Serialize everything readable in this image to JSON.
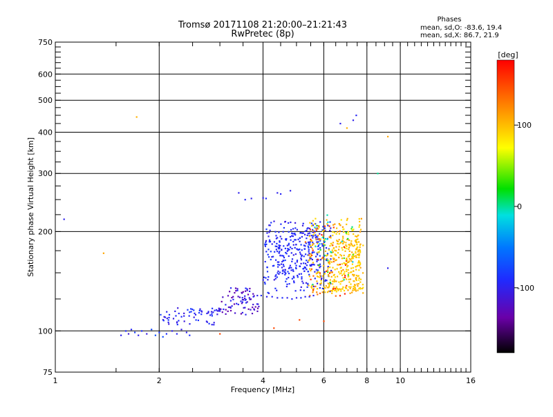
{
  "header": {
    "title": "Tromsø 20171108 21:20:00–21:21:43",
    "subtitle": "RwPretec (8p)"
  },
  "phases": {
    "heading": "Phases",
    "line_o": "mean, sd,O:  -83.6, 19.4",
    "line_x": "mean, sd,X:  86.7, 21.9"
  },
  "colorbar": {
    "label": "[deg]",
    "range": [
      -180,
      180
    ],
    "ticks": [
      {
        "value": 100,
        "label": "100"
      },
      {
        "value": 0,
        "label": "0"
      },
      {
        "value": -100,
        "label": "-100"
      }
    ]
  },
  "chart_data": {
    "type": "scatter",
    "xlabel": "Frequency [MHz]",
    "ylabel": "Stationary phase Virtual Height [km]",
    "x_scale": "log",
    "y_scale": "log",
    "xlim": [
      1,
      16
    ],
    "ylim": [
      75,
      750
    ],
    "grid": true,
    "x_ticks": [
      {
        "value": 1,
        "label": "1"
      },
      {
        "value": 2,
        "label": "2"
      },
      {
        "value": 4,
        "label": "4"
      },
      {
        "value": 6,
        "label": "6"
      },
      {
        "value": 8,
        "label": "8"
      },
      {
        "value": 10,
        "label": "10"
      },
      {
        "value": 16,
        "label": "16"
      }
    ],
    "x_grid": [
      2,
      4,
      6,
      8,
      10
    ],
    "y_ticks": [
      {
        "value": 75,
        "label": "75"
      },
      {
        "value": 100,
        "label": "100"
      },
      {
        "value": 200,
        "label": "200"
      },
      {
        "value": 300,
        "label": "300"
      },
      {
        "value": 400,
        "label": "400"
      },
      {
        "value": 500,
        "label": "500"
      },
      {
        "value": 600,
        "label": "600"
      },
      {
        "value": 750,
        "label": "750"
      }
    ],
    "y_grid": [
      100,
      200,
      300,
      400,
      500,
      600
    ],
    "points": [
      {
        "x": 1.06,
        "y": 218,
        "p": -100
      },
      {
        "x": 1.38,
        "y": 172,
        "p": 110
      },
      {
        "x": 1.72,
        "y": 445,
        "p": 105
      },
      {
        "x": 1.55,
        "y": 97,
        "p": -100
      },
      {
        "x": 1.6,
        "y": 100,
        "p": -90
      },
      {
        "x": 1.63,
        "y": 98,
        "p": -110
      },
      {
        "x": 1.66,
        "y": 101,
        "p": -95
      },
      {
        "x": 1.7,
        "y": 99,
        "p": -80
      },
      {
        "x": 1.74,
        "y": 97,
        "p": -100
      },
      {
        "x": 1.78,
        "y": 100,
        "p": -90
      },
      {
        "x": 1.84,
        "y": 98,
        "p": -105
      },
      {
        "x": 1.9,
        "y": 101,
        "p": -75
      },
      {
        "x": 1.95,
        "y": 97,
        "p": -70
      },
      {
        "x": 2.0,
        "y": 99,
        "p": -85
      },
      {
        "x": 2.05,
        "y": 96,
        "p": -72
      },
      {
        "x": 2.1,
        "y": 98,
        "p": -90
      },
      {
        "x": 2.18,
        "y": 100,
        "p": -100
      },
      {
        "x": 2.25,
        "y": 98,
        "p": -95
      },
      {
        "x": 2.32,
        "y": 101,
        "p": -105
      },
      {
        "x": 2.4,
        "y": 99,
        "p": -100
      },
      {
        "x": 2.45,
        "y": 97,
        "p": -90
      },
      {
        "x": 2.02,
        "y": 112,
        "p": -80
      },
      {
        "x": 2.08,
        "y": 110,
        "p": -100
      },
      {
        "x": 2.14,
        "y": 112,
        "p": -90
      },
      {
        "x": 2.2,
        "y": 109,
        "p": -105
      },
      {
        "x": 2.28,
        "y": 113,
        "p": -95
      },
      {
        "x": 2.36,
        "y": 111,
        "p": -100
      },
      {
        "x": 2.45,
        "y": 114,
        "p": -85
      },
      {
        "x": 2.55,
        "y": 112,
        "p": -100
      },
      {
        "x": 2.65,
        "y": 115,
        "p": -95
      },
      {
        "x": 2.75,
        "y": 113,
        "p": -100
      },
      {
        "x": 2.85,
        "y": 117,
        "p": -90
      },
      {
        "x": 2.95,
        "y": 115,
        "p": -105
      },
      {
        "x": 3.05,
        "y": 114,
        "p": -130
      },
      {
        "x": 3.12,
        "y": 116,
        "p": -135
      },
      {
        "x": 3.18,
        "y": 118,
        "p": -120
      },
      {
        "x": 3.25,
        "y": 119,
        "p": -100
      },
      {
        "x": 3.35,
        "y": 121,
        "p": -95
      },
      {
        "x": 3.45,
        "y": 123,
        "p": -100
      },
      {
        "x": 3.55,
        "y": 124,
        "p": -90
      },
      {
        "x": 3.65,
        "y": 126,
        "p": -100
      },
      {
        "x": 3.75,
        "y": 127,
        "p": -95
      },
      {
        "x": 3.85,
        "y": 128,
        "p": -100
      },
      {
        "x": 3.95,
        "y": 128,
        "p": -90
      },
      {
        "x": 4.1,
        "y": 127,
        "p": -100
      },
      {
        "x": 4.25,
        "y": 127,
        "p": -95
      },
      {
        "x": 4.4,
        "y": 126,
        "p": -100
      },
      {
        "x": 4.55,
        "y": 126,
        "p": -90
      },
      {
        "x": 4.7,
        "y": 126,
        "p": -100
      },
      {
        "x": 4.85,
        "y": 125,
        "p": -95
      },
      {
        "x": 5.0,
        "y": 126,
        "p": -100
      },
      {
        "x": 5.15,
        "y": 126,
        "p": -90
      },
      {
        "x": 5.3,
        "y": 127,
        "p": -100
      },
      {
        "x": 5.45,
        "y": 127,
        "p": -95
      },
      {
        "x": 5.6,
        "y": 128,
        "p": -100
      },
      {
        "x": 5.75,
        "y": 129,
        "p": 130
      },
      {
        "x": 5.85,
        "y": 130,
        "p": 140
      },
      {
        "x": 5.95,
        "y": 131,
        "p": 120
      },
      {
        "x": 6.05,
        "y": 131,
        "p": 95
      },
      {
        "x": 6.2,
        "y": 132,
        "p": 100
      },
      {
        "x": 6.35,
        "y": 132,
        "p": 90
      },
      {
        "x": 6.5,
        "y": 133,
        "p": 105
      },
      {
        "x": 6.65,
        "y": 134,
        "p": 100
      },
      {
        "x": 6.8,
        "y": 134,
        "p": 95
      },
      {
        "x": 6.95,
        "y": 135,
        "p": 100
      },
      {
        "x": 7.1,
        "y": 136,
        "p": 90
      },
      {
        "x": 3.4,
        "y": 262,
        "p": -100
      },
      {
        "x": 3.55,
        "y": 250,
        "p": -95
      },
      {
        "x": 3.7,
        "y": 252,
        "p": -100
      },
      {
        "x": 4.0,
        "y": 253,
        "p": -100
      },
      {
        "x": 4.08,
        "y": 252,
        "p": -90
      },
      {
        "x": 4.4,
        "y": 262,
        "p": -100
      },
      {
        "x": 4.5,
        "y": 260,
        "p": -95
      },
      {
        "x": 4.8,
        "y": 266,
        "p": -100
      },
      {
        "x": 6.7,
        "y": 425,
        "p": -100
      },
      {
        "x": 7.0,
        "y": 412,
        "p": 105
      },
      {
        "x": 7.3,
        "y": 435,
        "p": -100
      },
      {
        "x": 7.45,
        "y": 450,
        "p": -95
      },
      {
        "x": 9.2,
        "y": 388,
        "p": 110
      },
      {
        "x": 9.2,
        "y": 155,
        "p": -100
      },
      {
        "x": 8.6,
        "y": 300,
        "p": 0
      },
      {
        "x": 5.1,
        "y": 108,
        "p": 150
      },
      {
        "x": 4.3,
        "y": 102,
        "p": 150
      },
      {
        "x": 6.0,
        "y": 107,
        "p": 150
      },
      {
        "x": 3.0,
        "y": 98,
        "p": 150
      }
    ],
    "clusters": [
      {
        "x": [
          4.0,
          6.3
        ],
        "y": [
          130,
          215
        ],
        "p": [
          -110,
          -80
        ],
        "n": 260,
        "seed": 11
      },
      {
        "x": [
          4.3,
          5.8
        ],
        "y": [
          145,
          200
        ],
        "p": [
          -100,
          -85
        ],
        "n": 120,
        "seed": 17
      },
      {
        "x": [
          5.4,
          7.8
        ],
        "y": [
          130,
          220
        ],
        "p": [
          80,
          115
        ],
        "n": 240,
        "seed": 23
      },
      {
        "x": [
          6.2,
          7.7
        ],
        "y": [
          132,
          190
        ],
        "p": [
          85,
          110
        ],
        "n": 180,
        "seed": 29
      },
      {
        "x": [
          5.3,
          7.0
        ],
        "y": [
          125,
          210
        ],
        "p": [
          120,
          175
        ],
        "n": 45,
        "seed": 31
      },
      {
        "x": [
          5.5,
          7.3
        ],
        "y": [
          135,
          235
        ],
        "p": [
          -20,
          40
        ],
        "n": 30,
        "seed": 37
      },
      {
        "x": [
          3.0,
          3.9
        ],
        "y": [
          112,
          135
        ],
        "p": [
          -140,
          -90
        ],
        "n": 70,
        "seed": 41
      },
      {
        "x": [
          2.0,
          3.0
        ],
        "y": [
          104,
          118
        ],
        "p": [
          -110,
          -80
        ],
        "n": 55,
        "seed": 43
      }
    ]
  }
}
